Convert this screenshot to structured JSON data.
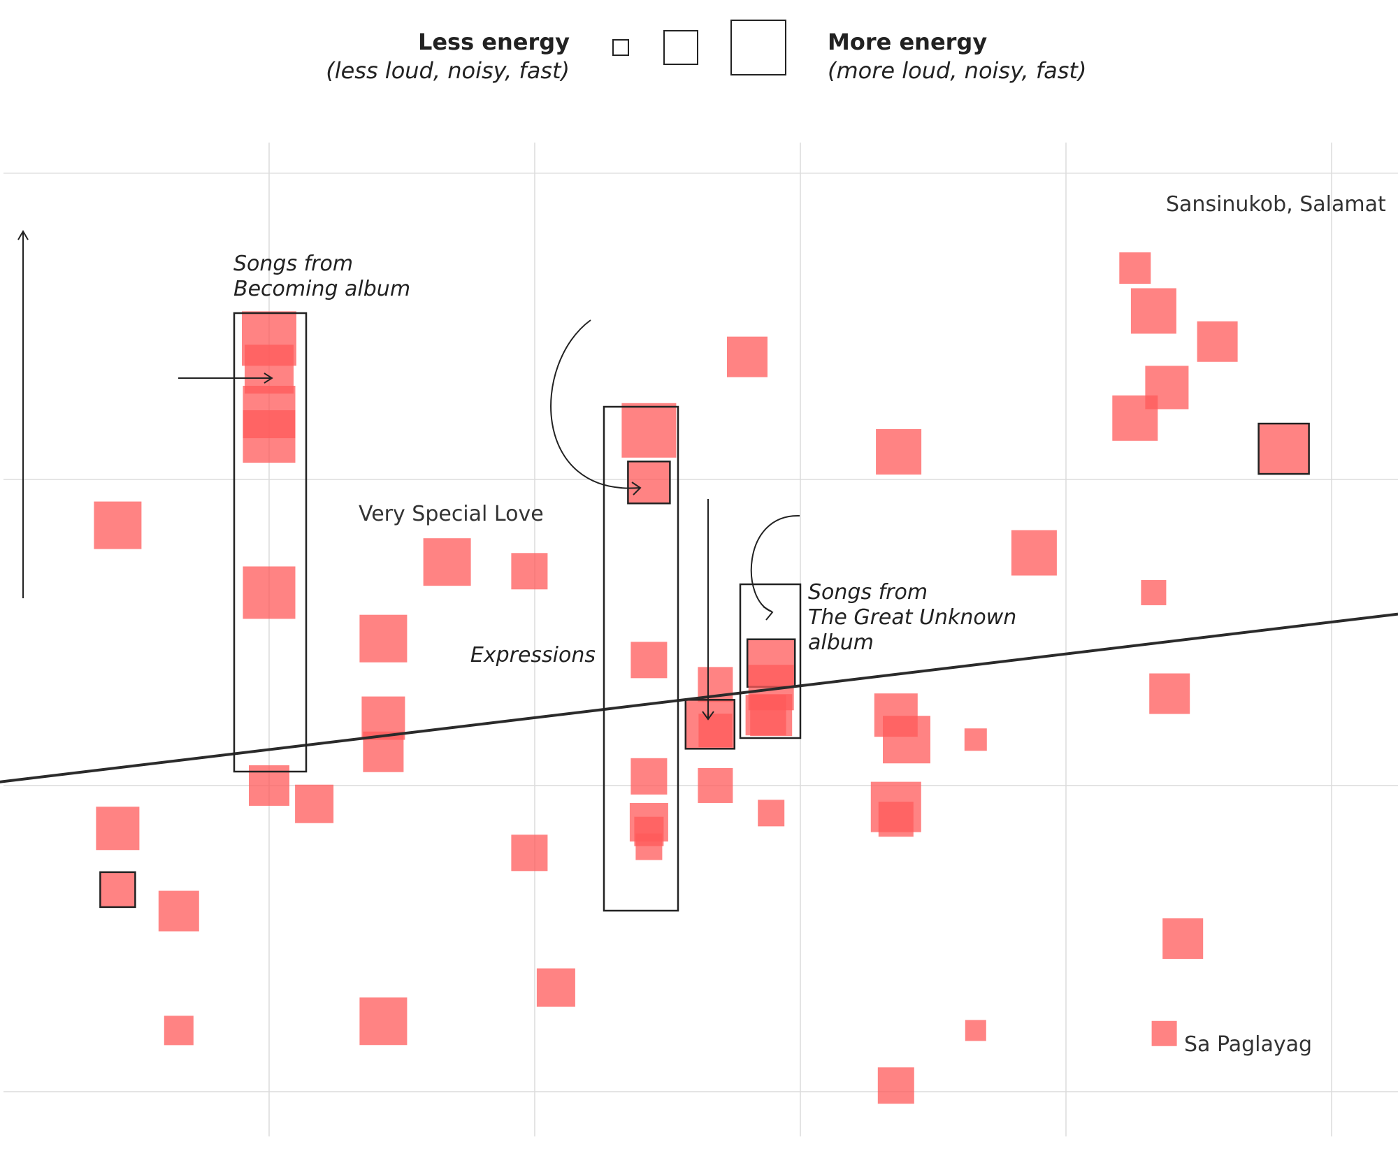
{
  "legend": {
    "less_title": "Less energy",
    "less_sub": "(less loud, noisy, fast)",
    "more_title": "More energy",
    "more_sub": "(more loud, noisy, fast)",
    "sample_sizes": [
      22,
      48,
      78
    ]
  },
  "annotations": {
    "becoming": [
      "Songs from",
      "Becoming album"
    ],
    "very_special_love": "Very Special Love",
    "expressions": "Expressions",
    "great_unknown": [
      "Songs from",
      "The Great Unknown",
      "album"
    ],
    "sansinukob": "Sansinukob, Salamat",
    "sa_paglayag": "Sa Paglayag"
  },
  "chart_data": {
    "type": "scatter",
    "title": "",
    "xlabel": "",
    "ylabel": "",
    "xlim": [
      0,
      5.25
    ],
    "ylim": [
      0,
      3.1
    ],
    "grid": true,
    "encoding_size": "energy",
    "color": "#ff5a5a",
    "points": [
      {
        "x": 0.43,
        "y": 1.85,
        "s": 68
      },
      {
        "x": 0.43,
        "y": 0.86,
        "s": 62
      },
      {
        "x": 0.43,
        "y": 0.66,
        "s": 50,
        "highlighted": true
      },
      {
        "x": 0.66,
        "y": 0.59,
        "s": 58
      },
      {
        "x": 0.66,
        "y": 0.2,
        "s": 42
      },
      {
        "x": 1.0,
        "y": 2.46,
        "s": 78
      },
      {
        "x": 1.0,
        "y": 2.36,
        "s": 70
      },
      {
        "x": 1.0,
        "y": 2.22,
        "s": 75
      },
      {
        "x": 1.0,
        "y": 2.14,
        "s": 75
      },
      {
        "x": 1.0,
        "y": 1.63,
        "s": 75
      },
      {
        "x": 1.0,
        "y": 1.0,
        "s": 58
      },
      {
        "x": 1.17,
        "y": 0.94,
        "s": 55
      },
      {
        "x": 1.43,
        "y": 1.48,
        "s": 68
      },
      {
        "x": 1.43,
        "y": 1.22,
        "s": 62
      },
      {
        "x": 1.43,
        "y": 1.11,
        "s": 58
      },
      {
        "x": 1.43,
        "y": 0.23,
        "s": 68
      },
      {
        "x": 1.67,
        "y": 1.73,
        "s": 68
      },
      {
        "x": 1.98,
        "y": 1.7,
        "s": 52
      },
      {
        "x": 1.98,
        "y": 0.78,
        "s": 52
      },
      {
        "x": 2.08,
        "y": 0.34,
        "s": 55
      },
      {
        "x": 2.43,
        "y": 2.16,
        "s": 78
      },
      {
        "x": 2.43,
        "y": 1.99,
        "s": 60,
        "highlighted": true
      },
      {
        "x": 2.43,
        "y": 1.41,
        "s": 52
      },
      {
        "x": 2.43,
        "y": 1.03,
        "s": 52
      },
      {
        "x": 2.43,
        "y": 0.88,
        "s": 55
      },
      {
        "x": 2.43,
        "y": 0.85,
        "s": 42
      },
      {
        "x": 2.43,
        "y": 0.8,
        "s": 38
      },
      {
        "x": 2.68,
        "y": 1.33,
        "s": 50
      },
      {
        "x": 2.68,
        "y": 1.18,
        "s": 48
      },
      {
        "x": 2.68,
        "y": 1.0,
        "s": 50
      },
      {
        "x": 2.66,
        "y": 1.2,
        "s": 70,
        "highlighted": true
      },
      {
        "x": 2.89,
        "y": 1.4,
        "s": 68,
        "highlighted": true
      },
      {
        "x": 2.89,
        "y": 1.32,
        "s": 65
      },
      {
        "x": 2.89,
        "y": 1.23,
        "s": 60
      },
      {
        "x": 2.87,
        "y": 1.23,
        "s": 58
      },
      {
        "x": 2.8,
        "y": 2.4,
        "s": 58
      },
      {
        "x": 2.89,
        "y": 0.91,
        "s": 38
      },
      {
        "x": 3.37,
        "y": 2.09,
        "s": 65
      },
      {
        "x": 3.36,
        "y": 1.23,
        "s": 62
      },
      {
        "x": 3.4,
        "y": 1.15,
        "s": 68
      },
      {
        "x": 3.36,
        "y": 0.93,
        "s": 72
      },
      {
        "x": 3.36,
        "y": 0.89,
        "s": 50
      },
      {
        "x": 3.36,
        "y": 0.02,
        "s": 52
      },
      {
        "x": 3.66,
        "y": 1.15,
        "s": 32
      },
      {
        "x": 3.66,
        "y": 0.2,
        "s": 30
      },
      {
        "x": 3.88,
        "y": 1.76,
        "s": 65
      },
      {
        "x": 4.26,
        "y": 2.69,
        "s": 45
      },
      {
        "x": 4.33,
        "y": 2.55,
        "s": 65
      },
      {
        "x": 4.57,
        "y": 2.45,
        "s": 58
      },
      {
        "x": 4.38,
        "y": 2.3,
        "s": 62
      },
      {
        "x": 4.26,
        "y": 2.2,
        "s": 65
      },
      {
        "x": 4.82,
        "y": 2.1,
        "s": 72,
        "highlighted": true
      },
      {
        "x": 4.33,
        "y": 1.63,
        "s": 36
      },
      {
        "x": 4.39,
        "y": 1.3,
        "s": 58
      },
      {
        "x": 4.44,
        "y": 0.5,
        "s": 58
      },
      {
        "x": 4.37,
        "y": 0.19,
        "s": 36
      }
    ],
    "trendline": {
      "from": [
        -0.03,
        1.01
      ],
      "to": [
        5.25,
        1.56
      ]
    }
  }
}
